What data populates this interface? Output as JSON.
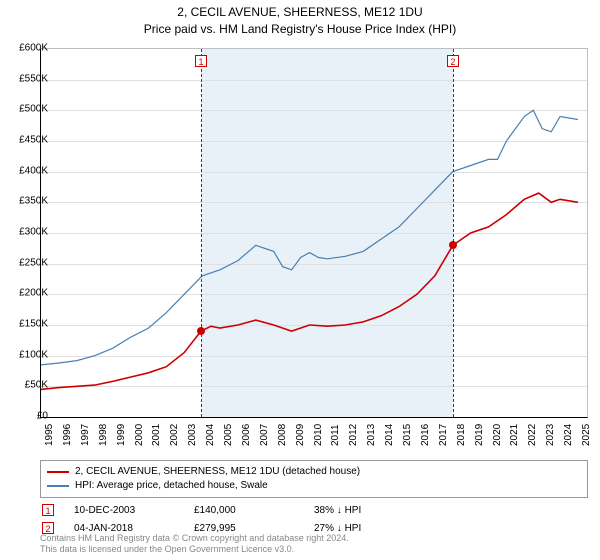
{
  "title": {
    "line1": "2, CECIL AVENUE, SHEERNESS, ME12 1DU",
    "line2": "Price paid vs. HM Land Registry's House Price Index (HPI)"
  },
  "chart": {
    "type": "line",
    "background_color": "#ffffff",
    "grid_color": "#e0e0e0",
    "axis_color": "#000000",
    "shaded_band": {
      "start": 2003.94,
      "end": 2018.01,
      "color": "#e8f1f8"
    },
    "xlim": [
      1995,
      2025.5
    ],
    "ylim": [
      0,
      600
    ],
    "yticks": [
      0,
      50,
      100,
      150,
      200,
      250,
      300,
      350,
      400,
      450,
      500,
      550,
      600
    ],
    "ytick_prefix": "£",
    "ytick_suffix": "K",
    "xticks": [
      1995,
      1996,
      1997,
      1998,
      1999,
      2000,
      2001,
      2002,
      2003,
      2004,
      2005,
      2006,
      2007,
      2008,
      2009,
      2010,
      2011,
      2012,
      2013,
      2014,
      2015,
      2016,
      2017,
      2018,
      2019,
      2020,
      2021,
      2022,
      2023,
      2024,
      2025
    ],
    "label_fontsize": 10,
    "series": [
      {
        "name": "price_paid",
        "color": "#cc0000",
        "width": 1.6,
        "points": [
          [
            1995,
            45
          ],
          [
            1996,
            48
          ],
          [
            1997,
            50
          ],
          [
            1998,
            52
          ],
          [
            1999,
            58
          ],
          [
            2000,
            65
          ],
          [
            2001,
            72
          ],
          [
            2002,
            82
          ],
          [
            2003,
            105
          ],
          [
            2003.94,
            140
          ],
          [
            2004.5,
            148
          ],
          [
            2005,
            145
          ],
          [
            2006,
            150
          ],
          [
            2007,
            158
          ],
          [
            2008,
            150
          ],
          [
            2009,
            140
          ],
          [
            2010,
            150
          ],
          [
            2011,
            148
          ],
          [
            2012,
            150
          ],
          [
            2013,
            155
          ],
          [
            2014,
            165
          ],
          [
            2015,
            180
          ],
          [
            2016,
            200
          ],
          [
            2017,
            230
          ],
          [
            2018.01,
            280
          ],
          [
            2018.5,
            290
          ],
          [
            2019,
            300
          ],
          [
            2020,
            310
          ],
          [
            2021,
            330
          ],
          [
            2022,
            355
          ],
          [
            2022.8,
            365
          ],
          [
            2023.5,
            350
          ],
          [
            2024,
            355
          ],
          [
            2025,
            350
          ]
        ]
      },
      {
        "name": "hpi",
        "color": "#4a7fb0",
        "width": 1.2,
        "points": [
          [
            1995,
            85
          ],
          [
            1996,
            88
          ],
          [
            1997,
            92
          ],
          [
            1998,
            100
          ],
          [
            1999,
            112
          ],
          [
            2000,
            130
          ],
          [
            2001,
            145
          ],
          [
            2002,
            170
          ],
          [
            2003,
            200
          ],
          [
            2004,
            230
          ],
          [
            2005,
            240
          ],
          [
            2006,
            255
          ],
          [
            2007,
            280
          ],
          [
            2008,
            270
          ],
          [
            2008.5,
            245
          ],
          [
            2009,
            240
          ],
          [
            2009.5,
            260
          ],
          [
            2010,
            268
          ],
          [
            2010.5,
            260
          ],
          [
            2011,
            258
          ],
          [
            2012,
            262
          ],
          [
            2013,
            270
          ],
          [
            2014,
            290
          ],
          [
            2015,
            310
          ],
          [
            2016,
            340
          ],
          [
            2017,
            370
          ],
          [
            2018,
            400
          ],
          [
            2019,
            410
          ],
          [
            2020,
            420
          ],
          [
            2020.5,
            420
          ],
          [
            2021,
            450
          ],
          [
            2022,
            490
          ],
          [
            2022.5,
            500
          ],
          [
            2023,
            470
          ],
          [
            2023.5,
            465
          ],
          [
            2024,
            490
          ],
          [
            2025,
            485
          ]
        ]
      }
    ],
    "markers": [
      {
        "id": "1",
        "x": 2003.94,
        "y": 140,
        "box_y": 565,
        "color": "#cc0000"
      },
      {
        "id": "2",
        "x": 2018.01,
        "y": 280,
        "box_y": 565,
        "color": "#cc0000"
      }
    ]
  },
  "legend": {
    "items": [
      {
        "label": "2, CECIL AVENUE, SHEERNESS, ME12 1DU (detached house)",
        "color": "#cc0000"
      },
      {
        "label": "HPI: Average price, detached house, Swale",
        "color": "#4a7fb0"
      }
    ]
  },
  "sales": [
    {
      "marker": "1",
      "date": "10-DEC-2003",
      "price": "£140,000",
      "diff": "38% ↓ HPI",
      "color": "#cc0000"
    },
    {
      "marker": "2",
      "date": "04-JAN-2018",
      "price": "£279,995",
      "diff": "27% ↓ HPI",
      "color": "#cc0000"
    }
  ],
  "footer": {
    "line1": "Contains HM Land Registry data © Crown copyright and database right 2024.",
    "line2": "This data is licensed under the Open Government Licence v3.0."
  }
}
